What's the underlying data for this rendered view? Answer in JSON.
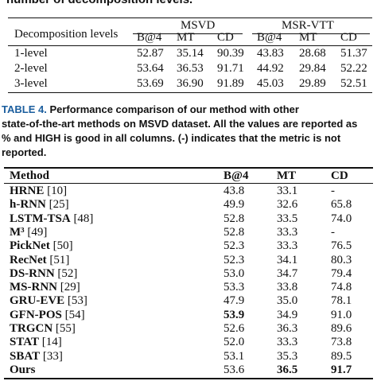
{
  "top_caption": "number of decomposition levels.",
  "table3": {
    "row_header": "Decomposition levels",
    "groups": [
      "MSVD",
      "MSR-VTT"
    ],
    "metrics": [
      "B@4",
      "MT",
      "CD",
      "B@4",
      "MT",
      "CD"
    ],
    "rows": [
      {
        "label": "1-level",
        "values": [
          "52.87",
          "35.14",
          "90.39",
          "43.83",
          "28.68",
          "51.37"
        ]
      },
      {
        "label": "2-level",
        "values": [
          "53.64",
          "36.53",
          "91.71",
          "44.92",
          "29.84",
          "52.22"
        ]
      },
      {
        "label": "3-level",
        "values": [
          "53.69",
          "36.90",
          "91.89",
          "45.03",
          "29.89",
          "52.51"
        ]
      }
    ]
  },
  "table4_caption": {
    "label": "TABLE 4.",
    "lines": [
      "Performance comparison of our method with other",
      "state-of-the-art methods on MSVD dataset. All the values are reported as",
      "% and HIGH is good in all columns. (-) indicates that the metric is not",
      "reported."
    ]
  },
  "table4": {
    "headers": [
      "Method",
      "B@4",
      "MT",
      "CD"
    ],
    "rows": [
      {
        "method": "HRNE",
        "ref": "[10]",
        "b4": "43.8",
        "mt": "33.1",
        "cd": "-"
      },
      {
        "method": "h-RNN",
        "ref": "[25]",
        "b4": "49.9",
        "mt": "32.6",
        "cd": "65.8"
      },
      {
        "method": "LSTM-TSA",
        "ref": "[48]",
        "b4": "52.8",
        "mt": "33.5",
        "cd": "74.0"
      },
      {
        "method": "M³",
        "ref": "[49]",
        "b4": "52.8",
        "mt": "33.3",
        "cd": "-"
      },
      {
        "method": "PickNet",
        "ref": "[50]",
        "b4": "52.3",
        "mt": "33.3",
        "cd": "76.5"
      },
      {
        "method": "RecNet",
        "ref": "[51]",
        "b4": "52.3",
        "mt": "34.1",
        "cd": "80.3"
      },
      {
        "method": "DS-RNN",
        "ref": "[52]",
        "b4": "53.0",
        "mt": "34.7",
        "cd": "79.4"
      },
      {
        "method": "MS-RNN",
        "ref": "[29]",
        "b4": "53.3",
        "mt": "33.8",
        "cd": "74.8"
      },
      {
        "method": "GRU-EVE",
        "ref": "[53]",
        "b4": "47.9",
        "mt": "35.0",
        "cd": "78.1"
      },
      {
        "method": "GFN-POS",
        "ref": "[54]",
        "b4": "53.9",
        "mt": "34.9",
        "cd": "91.0"
      },
      {
        "method": "TRGCN",
        "ref": "[55]",
        "b4": "52.6",
        "mt": "36.3",
        "cd": "89.6"
      },
      {
        "method": "STAT",
        "ref": "[14]",
        "b4": "52.0",
        "mt": "33.3",
        "cd": "73.8"
      },
      {
        "method": "SBAT",
        "ref": "[33]",
        "b4": "53.1",
        "mt": "35.3",
        "cd": "89.5"
      },
      {
        "method": "Ours",
        "ref": "",
        "b4": "53.6",
        "mt": "36.5",
        "cd": "91.7"
      }
    ],
    "bold_cells": [
      "GFN-POS.b4",
      "Ours.mt",
      "Ours.cd"
    ]
  }
}
